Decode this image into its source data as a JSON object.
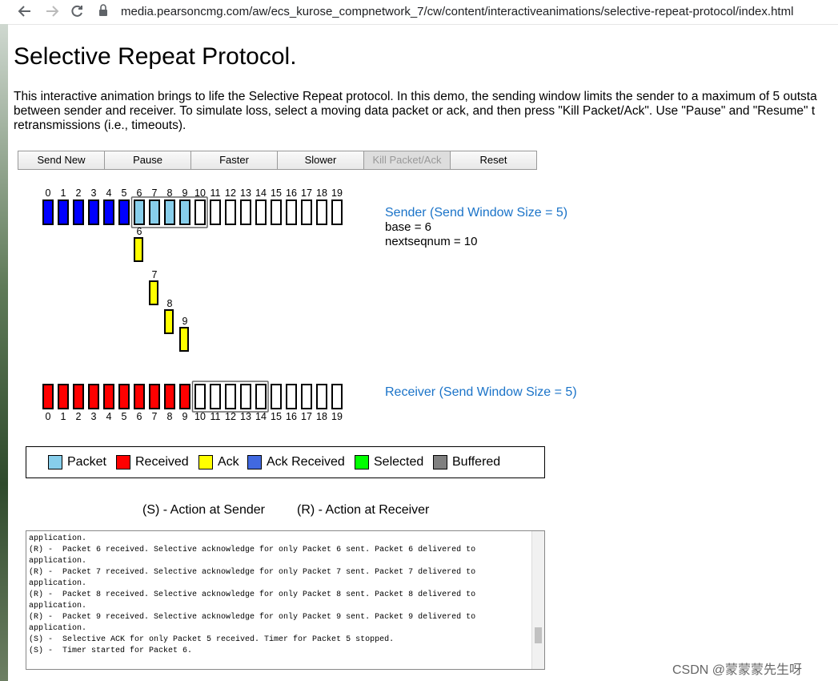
{
  "browser": {
    "url": "media.pearsoncmg.com/aw/ecs_kurose_compnetwork_7/cw/content/interactiveanimations/selective-repeat-protocol/index.html"
  },
  "page": {
    "title": "Selective Repeat Protocol.",
    "intro": [
      "This interactive animation brings to life the Selective Repeat protocol. In this demo, the sending window limits the sender to a maximum of 5 outsta",
      "between sender and receiver. To simulate loss, select a moving data packet or ack, and then press \"Kill Packet/Ack\". Use \"Pause\" and \"Resume\" t",
      "retransmissions (i.e., timeouts)."
    ]
  },
  "buttons": [
    {
      "label": "Send New",
      "enabled": true
    },
    {
      "label": "Pause",
      "enabled": true
    },
    {
      "label": "Faster",
      "enabled": true
    },
    {
      "label": "Slower",
      "enabled": true
    },
    {
      "label": "Kill Packet/Ack",
      "enabled": false
    },
    {
      "label": "Reset",
      "enabled": true
    }
  ],
  "sender": {
    "label": "Sender (Send Window Size = 5)",
    "base": "base = 6",
    "nextseqnum": "nextseqnum = 10",
    "seq_numbers": [
      0,
      1,
      2,
      3,
      4,
      5,
      6,
      7,
      8,
      9,
      10,
      11,
      12,
      13,
      14,
      15,
      16,
      17,
      18,
      19
    ],
    "slot_states": [
      "ack-received",
      "ack-received",
      "ack-received",
      "ack-received",
      "ack-received",
      "ack-received",
      "packet",
      "packet",
      "packet",
      "packet",
      "empty",
      "empty",
      "empty",
      "empty",
      "empty",
      "empty",
      "empty",
      "empty",
      "empty",
      "empty"
    ],
    "window_start": 6
  },
  "acks_in_flight": [
    "6",
    "7",
    "8",
    "9"
  ],
  "receiver": {
    "label": "Receiver (Send Window Size = 5)",
    "seq_numbers": [
      0,
      1,
      2,
      3,
      4,
      5,
      6,
      7,
      8,
      9,
      10,
      11,
      12,
      13,
      14,
      15,
      16,
      17,
      18,
      19
    ],
    "slot_states": [
      "received",
      "received",
      "received",
      "received",
      "received",
      "received",
      "received",
      "received",
      "received",
      "received",
      "empty",
      "empty",
      "empty",
      "empty",
      "empty",
      "empty",
      "empty",
      "empty",
      "empty",
      "empty"
    ],
    "window_start": 10
  },
  "legend": [
    {
      "label": "Packet",
      "color": "#87ceeb"
    },
    {
      "label": "Received",
      "color": "#ff0000"
    },
    {
      "label": "Ack",
      "color": "#ffff00"
    },
    {
      "label": "Ack Received",
      "color": "#4169e1"
    },
    {
      "label": "Selected",
      "color": "#00ff00"
    },
    {
      "label": "Buffered",
      "color": "#808080"
    }
  ],
  "state_colors": {
    "ack-received": "#0000ff",
    "packet": "#87ceeb",
    "received": "#ff0000",
    "empty": "#ffffff",
    "ack": "#ffff00"
  },
  "action_key": {
    "sender": "(S) - Action at Sender",
    "receiver": "(R) - Action at Receiver"
  },
  "log": [
    "application.",
    "(R) -  Packet 6 received. Selective acknowledge for only Packet 6 sent. Packet 6 delivered to",
    "application.",
    "(R) -  Packet 7 received. Selective acknowledge for only Packet 7 sent. Packet 7 delivered to",
    "application.",
    "(R) -  Packet 8 received. Selective acknowledge for only Packet 8 sent. Packet 8 delivered to",
    "application.",
    "(R) -  Packet 9 received. Selective acknowledge for only Packet 9 sent. Packet 9 delivered to",
    "application.",
    "(S) -  Selective ACK for only Packet 5 received. Timer for Packet 5 stopped.",
    "(S) -  Timer started for Packet 6."
  ],
  "watermark": "CSDN @蒙蒙蒙先生呀"
}
